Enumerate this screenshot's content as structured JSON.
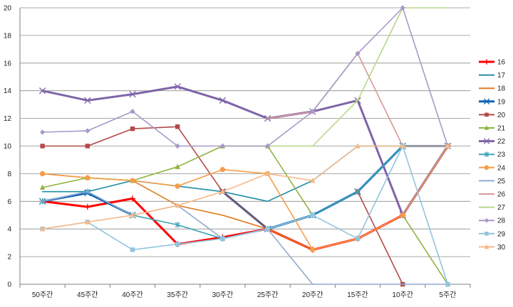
{
  "chart_data": {
    "type": "line",
    "categories": [
      "50주간",
      "45주간",
      "40주간",
      "35주간",
      "30주간",
      "25주간",
      "20주간",
      "15주간",
      "10주간",
      "5주간"
    ],
    "ylim": [
      0,
      20
    ],
    "y_ticks": [
      "0",
      "2",
      "4",
      "6",
      "8",
      "10",
      "12",
      "14",
      "16",
      "18",
      "20"
    ],
    "grid": "horizontal",
    "legend_position": "right",
    "series": [
      {
        "name": "16",
        "color": "#ff0000",
        "marker": "plus",
        "width": 3,
        "values": [
          6.0,
          5.6,
          6.2,
          2.9,
          3.4,
          4.0,
          2.5,
          3.3,
          5.0,
          10.0
        ]
      },
      {
        "name": "17",
        "color": "#1f8ea8",
        "marker": "none",
        "width": 1.6,
        "values": [
          6.7,
          6.7,
          7.5,
          7.1,
          6.7,
          6.0,
          7.5,
          10.0,
          10.0,
          10.0
        ]
      },
      {
        "name": "18",
        "color": "#e07b1f",
        "marker": "none",
        "width": 1.6,
        "values": [
          8.0,
          7.7,
          7.5,
          5.7,
          5.0,
          4.0,
          2.5,
          3.3,
          5.0,
          10.0
        ]
      },
      {
        "name": "19",
        "color": "#0b63b5",
        "marker": "x",
        "width": 3,
        "values": [
          6.0,
          6.6,
          5.0,
          null,
          6.7,
          4.0,
          5.0,
          6.7,
          10.0,
          10.0
        ]
      },
      {
        "name": "20",
        "color": "#b24a48",
        "marker": "square",
        "width": 1.6,
        "values": [
          10.0,
          10.0,
          11.25,
          11.4,
          6.7,
          4.0,
          null,
          6.7,
          0.0,
          null
        ]
      },
      {
        "name": "21",
        "color": "#8fb440",
        "marker": "triangle",
        "width": 1.6,
        "values": [
          7.0,
          7.7,
          7.5,
          8.5,
          10.0,
          10.0,
          5.0,
          null,
          5.0,
          0.0
        ]
      },
      {
        "name": "22",
        "color": "#7e64a8",
        "marker": "x",
        "width": 3,
        "values": [
          14.0,
          13.3,
          13.75,
          14.3,
          13.3,
          12.0,
          12.5,
          13.3,
          5.0,
          10.0
        ]
      },
      {
        "name": "23",
        "color": "#3fa6b8",
        "marker": "star",
        "width": 1.6,
        "values": [
          6.0,
          6.7,
          5.0,
          4.3,
          3.3,
          4.0,
          5.0,
          6.7,
          10.0,
          10.0
        ]
      },
      {
        "name": "24",
        "color": "#f59d4a",
        "marker": "circle",
        "width": 1.6,
        "values": [
          8.0,
          7.7,
          7.5,
          7.1,
          8.3,
          8.0,
          2.5,
          3.3,
          5.0,
          10.0
        ]
      },
      {
        "name": "25",
        "color": "#93a9cf",
        "marker": "dash",
        "width": 1.6,
        "values": [
          6.0,
          6.7,
          5.0,
          5.7,
          3.3,
          4.0,
          0.0,
          0.0,
          0.0,
          0.0
        ]
      },
      {
        "name": "26",
        "color": "#d69a98",
        "marker": "dash",
        "width": 1.6,
        "values": [
          null,
          null,
          null,
          null,
          null,
          12.0,
          12.5,
          16.7,
          10.0,
          10.0
        ]
      },
      {
        "name": "27",
        "color": "#b7d88b",
        "marker": "dash",
        "width": 1.6,
        "values": [
          null,
          null,
          null,
          null,
          null,
          10.0,
          10.0,
          13.3,
          20.0,
          20.0
        ]
      },
      {
        "name": "28",
        "color": "#a899c8",
        "marker": "diamond",
        "width": 1.6,
        "values": [
          11.0,
          11.1,
          12.5,
          10.0,
          10.0,
          10.0,
          12.5,
          16.7,
          20.0,
          10.0
        ]
      },
      {
        "name": "29",
        "color": "#92c5dd",
        "marker": "square",
        "width": 1.6,
        "values": [
          4.0,
          4.5,
          2.5,
          2.9,
          3.3,
          4.0,
          5.0,
          3.3,
          10.0,
          0.0
        ]
      },
      {
        "name": "30",
        "color": "#f6b98a",
        "marker": "triangle",
        "width": 1.6,
        "values": [
          4.0,
          4.5,
          5.0,
          5.7,
          6.7,
          8.0,
          7.5,
          10.0,
          10.0,
          10.0
        ]
      }
    ]
  }
}
